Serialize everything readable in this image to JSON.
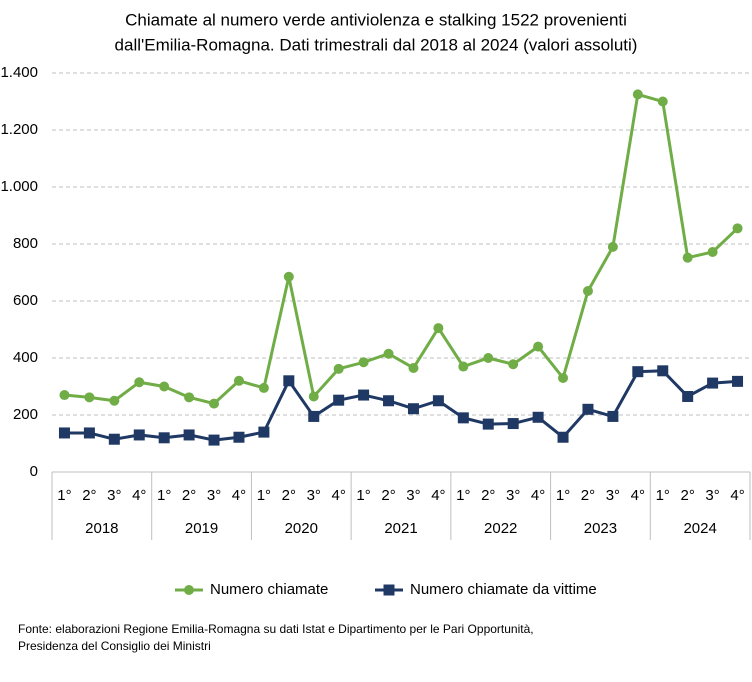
{
  "chart_data": {
    "type": "line",
    "title": [
      "Chiamate al numero verde antiviolenza e stalking 1522 provenienti",
      "dall'Emilia-Romagna. Dati trimestrali dal 2018 al 2024 (valori assoluti)"
    ],
    "categories": [
      "1°",
      "2°",
      "3°",
      "4°",
      "1°",
      "2°",
      "3°",
      "4°",
      "1°",
      "2°",
      "3°",
      "4°",
      "1°",
      "2°",
      "3°",
      "4°",
      "1°",
      "2°",
      "3°",
      "4°",
      "1°",
      "2°",
      "3°",
      "4°",
      "1°",
      "2°",
      "3°",
      "4°"
    ],
    "groups": [
      "2018",
      "2019",
      "2020",
      "2021",
      "2022",
      "2023",
      "2024"
    ],
    "series": [
      {
        "name": "Numero chiamate",
        "color": "#70ad47",
        "marker": "circle",
        "values": [
          270,
          262,
          250,
          315,
          300,
          262,
          240,
          320,
          295,
          685,
          265,
          362,
          385,
          415,
          365,
          505,
          370,
          400,
          378,
          440,
          330,
          635,
          790,
          1325,
          1300,
          752,
          772,
          855
        ]
      },
      {
        "name": "Numero chiamate da vittime",
        "color": "#1f3864",
        "marker": "square",
        "values": [
          137,
          137,
          115,
          130,
          120,
          130,
          112,
          122,
          140,
          320,
          195,
          252,
          270,
          250,
          222,
          250,
          190,
          168,
          170,
          192,
          122,
          220,
          195,
          352,
          355,
          265,
          312,
          318
        ]
      }
    ],
    "ylim": [
      0,
      1400
    ],
    "yticks": [
      0,
      200,
      400,
      600,
      800,
      {
        "value": 1000,
        "label": "1.000"
      },
      {
        "value": 1200,
        "label": "1.200"
      },
      {
        "value": 1400,
        "label": "1.400"
      }
    ],
    "grid": true,
    "source": [
      "Fonte: elaborazioni Regione Emilia-Romagna su dati Istat e Dipartimento per le Pari Opportunità,",
      "Presidenza del Consiglio dei Ministri"
    ]
  }
}
